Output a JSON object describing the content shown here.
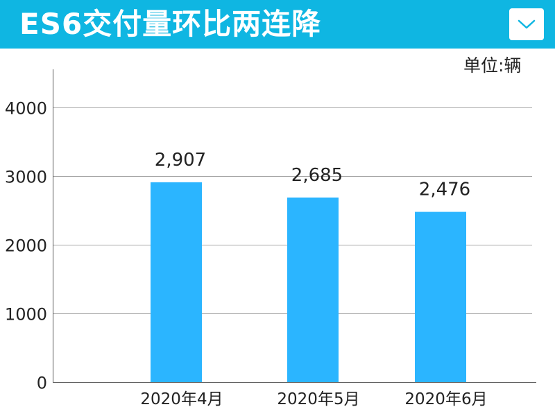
{
  "header": {
    "title": "ES6交付量环比两连降",
    "menu_icon": "chevron-down-icon"
  },
  "colors": {
    "header_bg": "#0fb6e2",
    "bar": "#2bb5ff",
    "gridline": "#a6a6a6"
  },
  "chart_data": {
    "type": "bar",
    "title": "",
    "xlabel": "",
    "ylabel": "",
    "unit": "单位:辆",
    "categories": [
      "2020年4月",
      "2020年5月",
      "2020年6月"
    ],
    "values": [
      2907,
      2685,
      2476
    ],
    "data_labels": [
      "2,907",
      "2,685",
      "2,476"
    ],
    "y_ticks": [
      "0",
      "1000",
      "2000",
      "3000",
      "4000"
    ],
    "ylim": [
      0,
      4550
    ],
    "grid": true,
    "legend": "none"
  }
}
